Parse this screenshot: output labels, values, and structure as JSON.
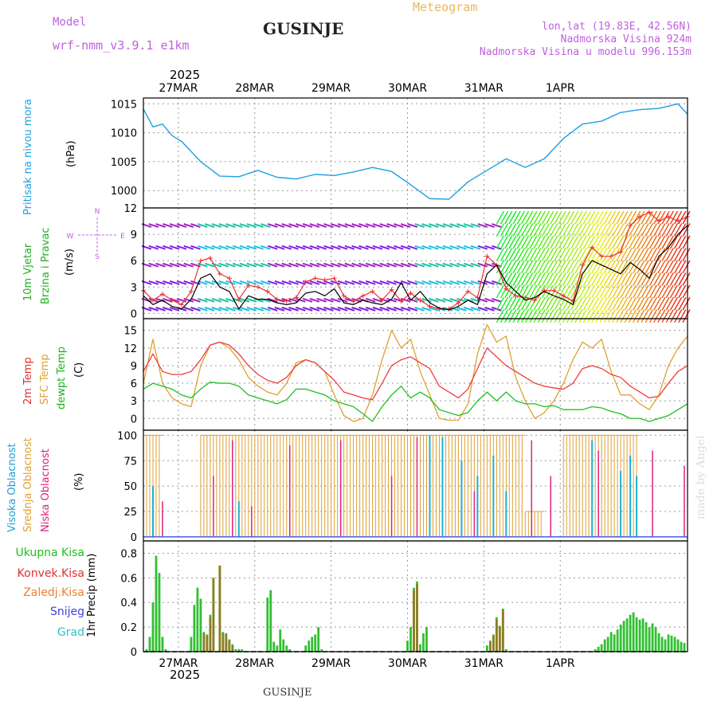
{
  "header": {
    "model_label": "Model",
    "model_name": "wrf-nmm_v3.9.1 e1km",
    "station": "GUSINJE",
    "chart_kind": "Meteogram",
    "lonlat": "lon,lat (19.83E, 42.56N)",
    "altitude": "Nadmorska Visina 924m",
    "model_altitude": "Nadmorska Visina u modelu 996.153m"
  },
  "footer": {
    "station": "GUSINJE",
    "credit": "made by Angel"
  },
  "year_label": "2025",
  "day_labels": [
    "27MAR",
    "28MAR",
    "29MAR",
    "30MAR",
    "31MAR",
    "1APR"
  ],
  "colors": {
    "pressure": "#1f9fe0",
    "wind_speed": "#000000",
    "wind_gust": "#f03030",
    "temp_2m": "#f03c3c",
    "temp_sfc": "#e0a030",
    "dewpoint": "#20c020",
    "cloud_high": "#20b0d0",
    "cloud_mid": "#e0a030",
    "cloud_low": "#e02080",
    "precip_total": "#30c030",
    "precip_conv": "#e03030",
    "grid": "#888888"
  },
  "chart_data": [
    {
      "type": "line",
      "ylabel_main": "Pritisak na nivou mora",
      "ylabel_unit": "(hPa)",
      "ylim": [
        997,
        1016
      ],
      "yticks": [
        "1000",
        "1005",
        "1010",
        "1015"
      ],
      "grid": true,
      "x": [
        0,
        3,
        6,
        9,
        12,
        18,
        24,
        30,
        36,
        42,
        48,
        54,
        60,
        66,
        72,
        78,
        84,
        90,
        96,
        102,
        108,
        114,
        120,
        126,
        132,
        138,
        144,
        150,
        156,
        162,
        168,
        171
      ],
      "series": [
        {
          "values": [
            1014.1,
            1011.0,
            1011.5,
            1009.5,
            1008.5,
            1005.0,
            1002.5,
            1002.4,
            1003.5,
            1002.3,
            1002.0,
            1002.8,
            1002.6,
            1003.2,
            1004.0,
            1003.3,
            1001.0,
            998.6,
            998.5,
            1001.5,
            1003.5,
            1005.5,
            1004.0,
            1005.5,
            1009.0,
            1011.5,
            1012.0,
            1013.5,
            1014.0,
            1014.2,
            1015.0,
            1013.2
          ]
        }
      ]
    },
    {
      "type": "line",
      "ylabel_main": "10m Vjetar",
      "ylabel_sub": "Brzina i Pravac",
      "ylabel_unit": "(m/s)",
      "compass": [
        "N",
        "W",
        "E",
        "S"
      ],
      "ylim": [
        -0.6,
        12
      ],
      "yticks": [
        "0",
        "3",
        "6",
        "9",
        "12"
      ],
      "grid": true,
      "x": [
        0,
        3,
        6,
        9,
        12,
        15,
        18,
        21,
        24,
        27,
        30,
        33,
        36,
        39,
        42,
        45,
        48,
        51,
        54,
        57,
        60,
        63,
        66,
        69,
        72,
        75,
        78,
        81,
        84,
        87,
        90,
        93,
        96,
        99,
        102,
        105,
        108,
        111,
        114,
        117,
        120,
        123,
        126,
        129,
        132,
        135,
        138,
        141,
        144,
        147,
        150,
        153,
        156,
        159,
        162,
        165,
        168,
        171
      ],
      "series": [
        {
          "values": [
            2.0,
            1.0,
            1.5,
            0.8,
            0.5,
            1.6,
            4.0,
            4.5,
            3.0,
            2.5,
            0.5,
            2.0,
            1.6,
            1.6,
            1.2,
            1.0,
            1.2,
            2.3,
            2.5,
            2.0,
            2.8,
            1.2,
            1.0,
            1.5,
            1.2,
            1.0,
            1.6,
            3.5,
            1.5,
            2.5,
            1.2,
            0.6,
            0.4,
            0.8,
            1.5,
            1.0,
            4.5,
            5.5,
            3.5,
            2.5,
            1.5,
            1.8,
            2.5,
            2.0,
            1.6,
            1.0,
            4.5,
            6.0,
            5.5,
            5.0,
            4.5,
            5.8,
            5.0,
            4.0,
            6.5,
            7.5,
            9.0,
            10.0
          ]
        },
        {
          "values": [
            2.6,
            1.5,
            2.2,
            1.5,
            1.0,
            2.5,
            6.0,
            6.3,
            4.5,
            4.0,
            1.6,
            3.2,
            3.0,
            2.5,
            1.6,
            1.4,
            1.8,
            3.6,
            4.0,
            3.8,
            4.0,
            2.0,
            1.4,
            2.0,
            2.5,
            1.5,
            2.7,
            1.4,
            2.3,
            1.5,
            0.8,
            0.5,
            0.5,
            1.2,
            2.5,
            1.8,
            6.5,
            5.5,
            2.8,
            2.0,
            1.8,
            1.5,
            2.6,
            2.6,
            2.0,
            1.4,
            5.5,
            7.5,
            6.5,
            6.5,
            7.0,
            10.0,
            11.0,
            11.5,
            10.5,
            11.0,
            10.5,
            11.0
          ]
        }
      ]
    },
    {
      "type": "line",
      "ylabel_main": "2m Temp",
      "ylabel_mid": "SFC Temp",
      "ylabel_sub": "dewpt Temp",
      "ylabel_unit": "(C)",
      "ylim": [
        -2,
        17
      ],
      "yticks": [
        "0",
        "3",
        "6",
        "9",
        "12",
        "15"
      ],
      "grid": true,
      "x": [
        0,
        3,
        6,
        9,
        12,
        15,
        18,
        21,
        24,
        27,
        30,
        33,
        36,
        39,
        42,
        45,
        48,
        51,
        54,
        57,
        60,
        63,
        66,
        69,
        72,
        75,
        78,
        81,
        84,
        87,
        90,
        93,
        96,
        99,
        102,
        105,
        108,
        111,
        114,
        117,
        120,
        123,
        126,
        129,
        132,
        135,
        138,
        141,
        144,
        147,
        150,
        153,
        156,
        159,
        162,
        165,
        168,
        171
      ],
      "series": [
        {
          "values": [
            8,
            11,
            8,
            7.5,
            7.5,
            8,
            10,
            12.5,
            13,
            12.5,
            11,
            9,
            7.5,
            6.5,
            6,
            7,
            9,
            10,
            9.5,
            8,
            6.5,
            4.5,
            4,
            3.5,
            3.2,
            6,
            9,
            10,
            10.5,
            9.5,
            8.5,
            5.5,
            4.5,
            3.5,
            5,
            8.5,
            12,
            10.5,
            9,
            8,
            7,
            6,
            5.5,
            5.2,
            5,
            6,
            8.5,
            9,
            8.5,
            7.5,
            7,
            5.5,
            4.5,
            3.5,
            3.8,
            6,
            8,
            9
          ]
        },
        {
          "values": [
            6,
            13.5,
            6,
            3.5,
            2.5,
            2,
            9,
            12.5,
            13,
            12,
            10,
            7,
            5.5,
            4.5,
            4,
            6,
            9.5,
            10,
            9.5,
            8,
            4,
            0.5,
            -0.5,
            0,
            4,
            10,
            15,
            12,
            13.5,
            8,
            4,
            0,
            -0.3,
            -0.3,
            2.5,
            11,
            16,
            13,
            14,
            7,
            3,
            0,
            1,
            3,
            6,
            10,
            13,
            12,
            13.5,
            8,
            4,
            4,
            2.5,
            1.5,
            4,
            9,
            12,
            14
          ]
        },
        {
          "values": [
            5,
            6,
            5.5,
            5,
            4,
            3.5,
            5,
            6.2,
            6,
            6,
            5.5,
            4,
            3.5,
            3,
            2.5,
            3.2,
            5,
            5,
            4.5,
            4,
            3,
            2.5,
            2,
            0.8,
            -0.5,
            2,
            4,
            5.5,
            3.5,
            4.5,
            3.5,
            1.5,
            1,
            0.5,
            1,
            3,
            4.5,
            3,
            4.5,
            3,
            2.5,
            2.5,
            2,
            2.2,
            1.5,
            1.5,
            1.5,
            2,
            1.8,
            1.2,
            0.8,
            0,
            0,
            -0.5,
            0,
            0.5,
            1.5,
            2.5
          ]
        }
      ]
    },
    {
      "type": "bar",
      "ylabel_main": "Visoka Oblacnost",
      "ylabel_mid": "Srednja Oblacnost",
      "ylabel_sub": "Niska Oblacnost",
      "ylabel_unit": "(%)",
      "ylim": [
        -4,
        105
      ],
      "yticks": [
        "0",
        "25",
        "50",
        "75",
        "100"
      ],
      "grid": true,
      "mid_cloud_spans": [
        [
          0,
          6,
          100
        ],
        [
          18,
          66,
          100
        ],
        [
          66,
          120,
          100
        ],
        [
          120,
          126,
          25
        ],
        [
          132,
          156,
          100
        ]
      ],
      "high_spikes": [
        [
          3,
          50
        ],
        [
          30,
          35
        ],
        [
          90,
          100
        ],
        [
          94,
          98
        ],
        [
          100,
          75
        ],
        [
          105,
          60
        ],
        [
          110,
          80
        ],
        [
          114,
          45
        ],
        [
          150,
          65
        ],
        [
          153,
          80
        ],
        [
          155,
          60
        ],
        [
          141,
          95
        ]
      ],
      "low_spikes": [
        [
          6,
          35
        ],
        [
          22,
          60
        ],
        [
          28,
          95
        ],
        [
          34,
          30
        ],
        [
          46,
          90
        ],
        [
          62,
          95
        ],
        [
          78,
          60
        ],
        [
          86,
          98
        ],
        [
          104,
          45
        ],
        [
          122,
          95
        ],
        [
          128,
          60
        ],
        [
          143,
          85
        ],
        [
          160,
          85
        ],
        [
          170,
          70
        ]
      ]
    },
    {
      "type": "bar",
      "ylabel_main": "1hr Precip (mm)",
      "legend": [
        "Ukupna Kisa",
        "Konvek.Kisa",
        "Zaledj.Kisa",
        "Snijeg",
        "Grad"
      ],
      "ylim": [
        0,
        0.9
      ],
      "yticks": [
        "0",
        "0.2",
        "0.4",
        "0.6",
        "0.8"
      ],
      "grid": true,
      "x": [
        1,
        2,
        3,
        4,
        5,
        6,
        7,
        15,
        16,
        17,
        18,
        19,
        20,
        21,
        22,
        24,
        25,
        26,
        27,
        28,
        29,
        30,
        31,
        39,
        40,
        41,
        42,
        43,
        44,
        45,
        46,
        51,
        52,
        53,
        54,
        55,
        56,
        83,
        84,
        85,
        86,
        87,
        88,
        89,
        108,
        109,
        110,
        111,
        112,
        113,
        114,
        142,
        143,
        144,
        145,
        146,
        147,
        148,
        149,
        150,
        151,
        152,
        153,
        154,
        155,
        156,
        157,
        158,
        159,
        160,
        161,
        162,
        163,
        164,
        165,
        166,
        167,
        168,
        169,
        170
      ],
      "values": [
        0.02,
        0.12,
        0.4,
        0.78,
        0.64,
        0.12,
        0.02,
        0.12,
        0.38,
        0.52,
        0.43,
        0.16,
        0.14,
        0.3,
        0.6,
        0.7,
        0.16,
        0.15,
        0.1,
        0.06,
        0.02,
        0.02,
        0.02,
        0.44,
        0.5,
        0.08,
        0.05,
        0.18,
        0.1,
        0.05,
        0.02,
        0.05,
        0.09,
        0.12,
        0.14,
        0.2,
        0.02,
        0.09,
        0.2,
        0.52,
        0.57,
        0.06,
        0.15,
        0.2,
        0.05,
        0.09,
        0.14,
        0.28,
        0.21,
        0.35,
        0.02,
        0.02,
        0.04,
        0.06,
        0.1,
        0.12,
        0.16,
        0.14,
        0.18,
        0.22,
        0.25,
        0.27,
        0.3,
        0.32,
        0.28,
        0.26,
        0.27,
        0.24,
        0.2,
        0.23,
        0.2,
        0.15,
        0.12,
        0.1,
        0.14,
        0.13,
        0.12,
        0.1,
        0.08,
        0.07
      ],
      "conv_x": [
        19,
        20,
        21,
        22,
        24,
        25,
        26,
        27,
        28,
        85,
        86,
        109,
        110,
        111,
        112,
        113
      ],
      "conv_values": [
        0.15,
        0.13,
        0.28,
        0.6,
        0.7,
        0.15,
        0.14,
        0.09,
        0.05,
        0.5,
        0.55,
        0.08,
        0.13,
        0.26,
        0.2,
        0.34
      ]
    }
  ]
}
